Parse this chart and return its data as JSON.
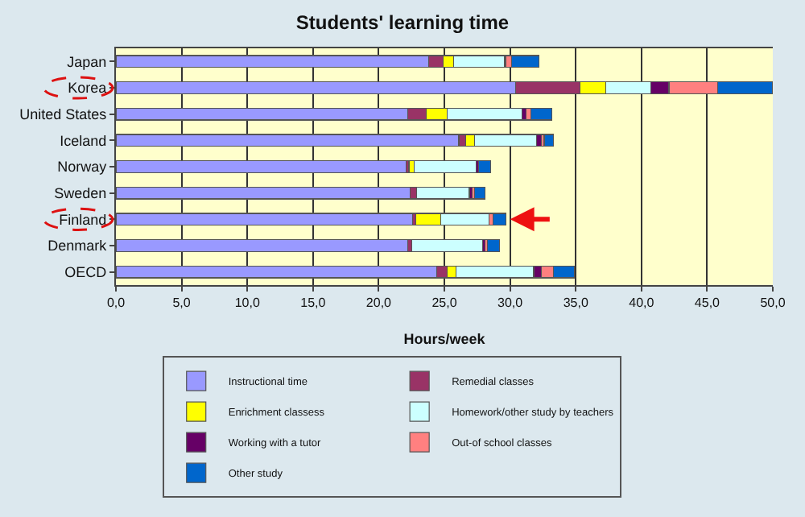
{
  "chart_data": {
    "type": "bar",
    "title": "Students' learning time",
    "xlabel": "Hours/week",
    "orientation": "horizontal",
    "stacked": true,
    "categories": [
      "Japan",
      "Korea",
      "United States",
      "Iceland",
      "Norway",
      "Sweden",
      "Finland",
      "Denmark",
      "OECD"
    ],
    "series": [
      {
        "name": "Instructional time",
        "color": "#9999ff",
        "values": [
          23.8,
          30.4,
          22.2,
          26.1,
          22.1,
          22.4,
          22.6,
          22.2,
          24.4
        ]
      },
      {
        "name": "Remedial classes",
        "color": "#993366",
        "values": [
          1.1,
          4.9,
          1.4,
          0.5,
          0.2,
          0.5,
          0.2,
          0.3,
          0.8
        ]
      },
      {
        "name": "Enrichment classess",
        "color": "#ffff00",
        "values": [
          0.8,
          2.0,
          1.6,
          0.7,
          0.4,
          0,
          1.9,
          0,
          0.7
        ]
      },
      {
        "name": "Homework/other study by teachers",
        "color": "#ccffff",
        "values": [
          3.9,
          3.4,
          5.7,
          4.7,
          4.7,
          4.0,
          3.7,
          5.4,
          5.9
        ]
      },
      {
        "name": "Working with a tutor",
        "color": "#660066",
        "values": [
          0.1,
          1.4,
          0.3,
          0.4,
          0.2,
          0.2,
          null,
          0.2,
          0.6
        ]
      },
      {
        "name": "Out-of school classes",
        "color": "#ff8080",
        "values": [
          0.4,
          3.7,
          0.4,
          0.2,
          0,
          0.2,
          0.3,
          0.2,
          0.9
        ]
      },
      {
        "name": "Other study",
        "color": "#0066cc",
        "values": [
          2.1,
          4.2,
          1.6,
          0.7,
          0.9,
          0.8,
          1.0,
          0.9,
          1.6
        ]
      }
    ],
    "xlim": [
      0,
      50
    ],
    "xticks": [
      {
        "value": 0,
        "label": "0,0"
      },
      {
        "value": 5,
        "label": "5,0"
      },
      {
        "value": 10,
        "label": "10,0"
      },
      {
        "value": 15,
        "label": "15,0"
      },
      {
        "value": 20,
        "label": "20,0"
      },
      {
        "value": 25,
        "label": "25,0"
      },
      {
        "value": 30,
        "label": "30,0"
      },
      {
        "value": 35,
        "label": "35,0"
      },
      {
        "value": 40,
        "label": "40,0"
      },
      {
        "value": 45,
        "label": "45,0"
      },
      {
        "value": 50,
        "label": "50,0"
      }
    ],
    "grid": "x",
    "legend": "bottom"
  }
}
